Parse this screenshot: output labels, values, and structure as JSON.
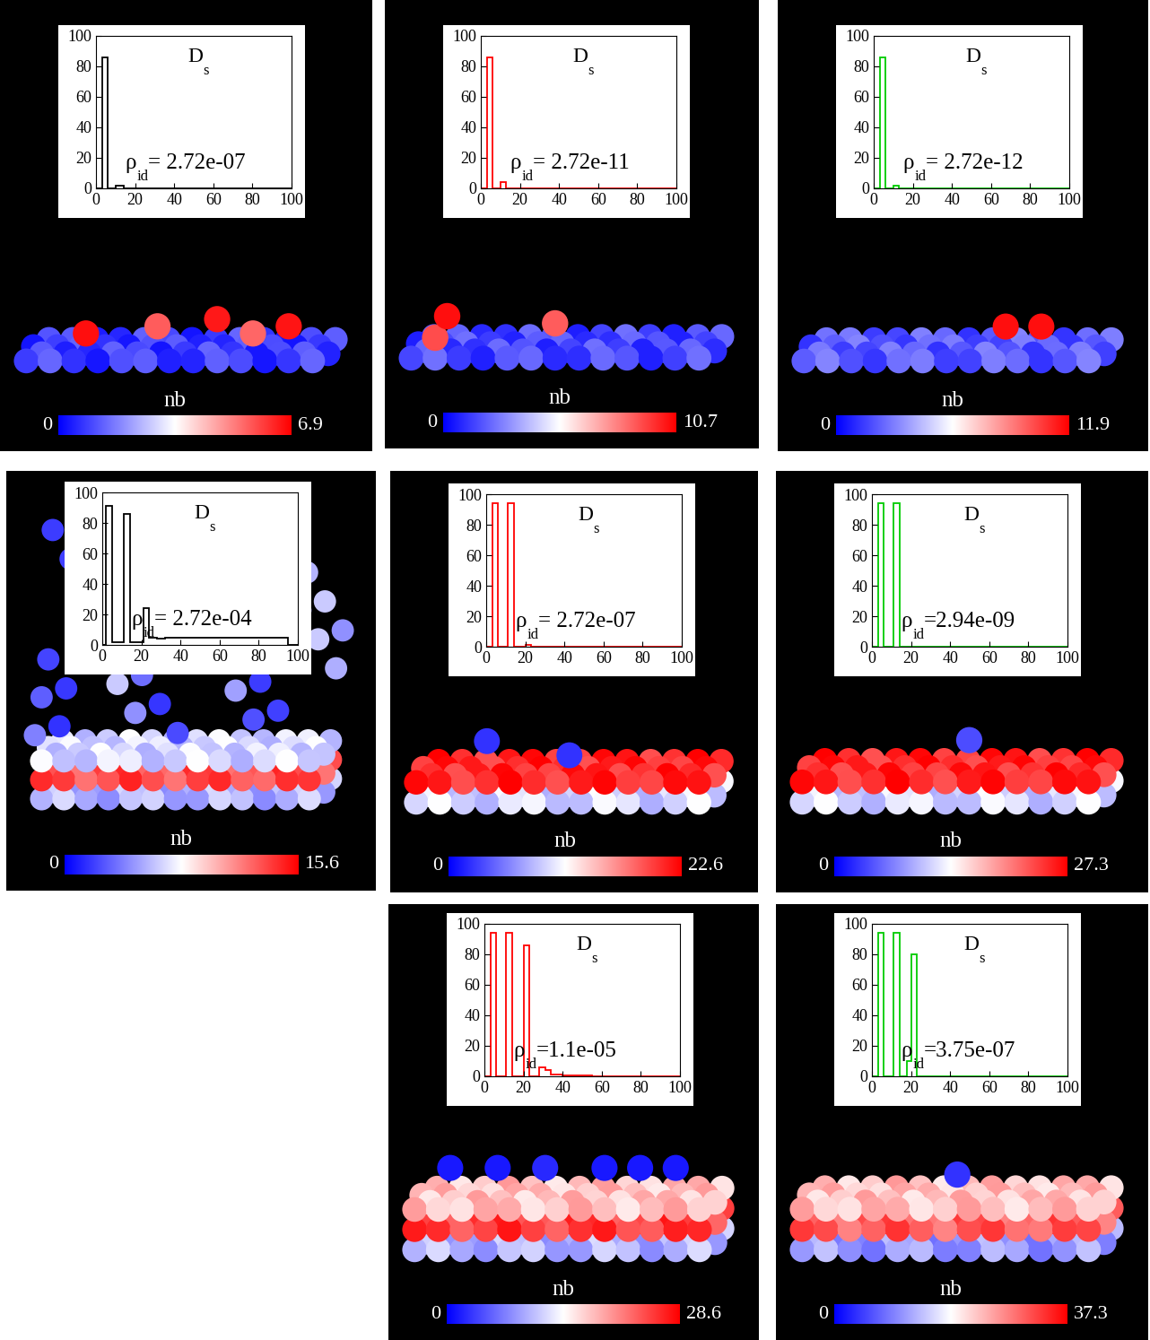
{
  "chart_data": [
    {
      "type": "histogram",
      "title": {
        "symbol": "D",
        "subscript": "s"
      },
      "annotation": {
        "symbol": "ρ",
        "subscript": "id",
        "text": "= 2.72e-07"
      },
      "color": "#000000",
      "bins": [
        0,
        3,
        6,
        10,
        14,
        100
      ],
      "counts": [
        0,
        86,
        0,
        2,
        0
      ],
      "xlim": [
        0,
        100
      ],
      "ylim": [
        0,
        100
      ],
      "xticks": [
        0,
        20,
        40,
        60,
        80,
        100
      ],
      "yticks": [
        0,
        20,
        40,
        60,
        80,
        100
      ],
      "colorbar": {
        "label": "nb",
        "range": [
          0,
          6.9
        ],
        "ticks": [
          0,
          6.9
        ]
      }
    },
    {
      "type": "histogram",
      "title": {
        "symbol": "D",
        "subscript": "s"
      },
      "annotation": {
        "symbol": "ρ",
        "subscript": "id",
        "text": "= 2.72e-11"
      },
      "color": "#ff0000",
      "bins": [
        0,
        3,
        6,
        10,
        13,
        100
      ],
      "counts": [
        0,
        86,
        0,
        4,
        0
      ],
      "xlim": [
        0,
        100
      ],
      "ylim": [
        0,
        100
      ],
      "xticks": [
        0,
        20,
        40,
        60,
        80,
        100
      ],
      "yticks": [
        0,
        20,
        40,
        60,
        80,
        100
      ],
      "colorbar": {
        "label": "nb",
        "range": [
          0,
          10.7
        ],
        "ticks": [
          0,
          10.7
        ]
      }
    },
    {
      "type": "histogram",
      "title": {
        "symbol": "D",
        "subscript": "s"
      },
      "annotation": {
        "symbol": "ρ",
        "subscript": "id",
        "text": "= 2.72e-12"
      },
      "color": "#00cc00",
      "bins": [
        0,
        3,
        6,
        10,
        13,
        100
      ],
      "counts": [
        0,
        86,
        0,
        2,
        0
      ],
      "xlim": [
        0,
        100
      ],
      "ylim": [
        0,
        100
      ],
      "xticks": [
        0,
        20,
        40,
        60,
        80,
        100
      ],
      "yticks": [
        0,
        20,
        40,
        60,
        80,
        100
      ],
      "colorbar": {
        "label": "nb",
        "range": [
          0,
          11.9
        ],
        "ticks": [
          0,
          11.9
        ]
      }
    },
    {
      "type": "histogram",
      "title": {
        "symbol": "D",
        "subscript": "s"
      },
      "annotation": {
        "symbol": "ρ",
        "subscript": "id",
        "text": "= 2.72e-04"
      },
      "color": "#000000",
      "bins": [
        0,
        2,
        5,
        11,
        14,
        21,
        24,
        28,
        32,
        95,
        100
      ],
      "counts": [
        0,
        91,
        2,
        86,
        2,
        24,
        5,
        4,
        5,
        0
      ],
      "xlim": [
        0,
        100
      ],
      "ylim": [
        0,
        100
      ],
      "xticks": [
        0,
        20,
        40,
        60,
        80,
        100
      ],
      "yticks": [
        0,
        20,
        40,
        60,
        80,
        100
      ],
      "colorbar": {
        "label": "nb",
        "range": [
          0,
          15.6
        ],
        "ticks": [
          0,
          15.6
        ]
      }
    },
    {
      "type": "histogram",
      "title": {
        "symbol": "D",
        "subscript": "s"
      },
      "annotation": {
        "symbol": "ρ",
        "subscript": "id",
        "text": "= 2.72e-07"
      },
      "color": "#ff0000",
      "bins": [
        0,
        3,
        6,
        11,
        14,
        20,
        23,
        100
      ],
      "counts": [
        0,
        94,
        0,
        94,
        0,
        1,
        0
      ],
      "xlim": [
        0,
        100
      ],
      "ylim": [
        0,
        100
      ],
      "xticks": [
        0,
        20,
        40,
        60,
        80,
        100
      ],
      "yticks": [
        0,
        20,
        40,
        60,
        80,
        100
      ],
      "colorbar": {
        "label": "nb",
        "range": [
          0,
          22.6
        ],
        "ticks": [
          0,
          22.6
        ]
      }
    },
    {
      "type": "histogram",
      "title": {
        "symbol": "D",
        "subscript": "s"
      },
      "annotation": {
        "symbol": "ρ",
        "subscript": "id",
        "text": "=2.94e-09"
      },
      "color": "#00cc00",
      "bins": [
        0,
        3,
        6,
        11,
        14,
        100
      ],
      "counts": [
        0,
        94,
        0,
        94,
        0
      ],
      "xlim": [
        0,
        100
      ],
      "ylim": [
        0,
        100
      ],
      "xticks": [
        0,
        20,
        40,
        60,
        80,
        100
      ],
      "yticks": [
        0,
        20,
        40,
        60,
        80,
        100
      ],
      "colorbar": {
        "label": "nb",
        "range": [
          0,
          27.3
        ],
        "ticks": [
          0,
          27.3
        ]
      }
    },
    {
      "type": "histogram",
      "title": {
        "symbol": "D",
        "subscript": "s"
      },
      "annotation": {
        "symbol": "ρ",
        "subscript": "id",
        "text": "=1.1e-05"
      },
      "color": "#ff0000",
      "bins": [
        0,
        3,
        6,
        11,
        14,
        20,
        23,
        28,
        31,
        34,
        40,
        55,
        100
      ],
      "counts": [
        0,
        94,
        0,
        94,
        0,
        86,
        0,
        6,
        4,
        1,
        0.5,
        0
      ],
      "xlim": [
        0,
        100
      ],
      "ylim": [
        0,
        100
      ],
      "xticks": [
        0,
        20,
        40,
        60,
        80,
        100
      ],
      "yticks": [
        0,
        20,
        40,
        60,
        80,
        100
      ],
      "colorbar": {
        "label": "nb",
        "range": [
          0,
          28.6
        ],
        "ticks": [
          0,
          28.6
        ]
      }
    },
    {
      "type": "histogram",
      "title": {
        "symbol": "D",
        "subscript": "s"
      },
      "annotation": {
        "symbol": "ρ",
        "subscript": "id",
        "text": "=3.75e-07"
      },
      "color": "#00cc00",
      "bins": [
        0,
        3,
        6,
        11,
        14,
        18,
        20,
        23,
        100
      ],
      "counts": [
        0,
        94,
        0,
        94,
        0,
        10,
        80,
        0
      ],
      "xlim": [
        0,
        100
      ],
      "ylim": [
        0,
        100
      ],
      "xticks": [
        0,
        20,
        40,
        60,
        80,
        100
      ],
      "yticks": [
        0,
        20,
        40,
        60,
        80,
        100
      ],
      "colorbar": {
        "label": "nb",
        "range": [
          0,
          37.3
        ],
        "ticks": [
          0,
          37.3
        ]
      }
    }
  ]
}
